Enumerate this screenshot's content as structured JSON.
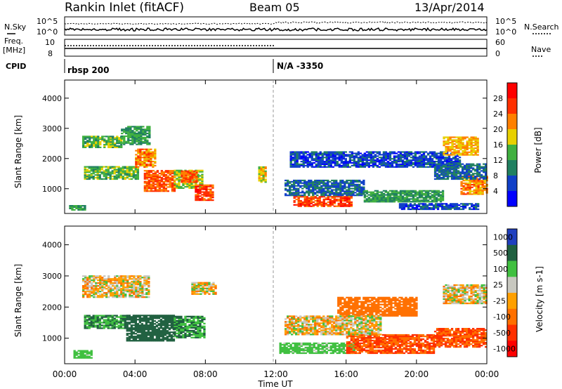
{
  "header": {
    "title": "Rankin Inlet (fitACF)",
    "beam": "Beam 05",
    "date": "13/Apr/2014"
  },
  "status_panel": {
    "left_top_label": "N.Sky",
    "left_mid_label_line1": "Freq.",
    "left_mid_label_line2": "[MHz]",
    "cpid_label": "CPID",
    "right_top_label": "N.Search",
    "right_mid_label": "Nave",
    "noise_ticks_left": [
      "10^5",
      "10^0"
    ],
    "noise_ticks_right": [
      "10^5",
      "10^0"
    ],
    "freq_ticks": [
      "10",
      "8"
    ],
    "nave_ticks": [
      "60",
      "0"
    ],
    "cpid_segments": [
      {
        "start_hour": 0.0,
        "label": "rbsp 200"
      },
      {
        "start_hour": 11.95,
        "label": "N/A -3350"
      }
    ]
  },
  "x_axis": {
    "label": "Time UT",
    "ticks": [
      "00:00",
      "04:00",
      "08:00",
      "12:00",
      "16:00",
      "20:00",
      "00:00"
    ]
  },
  "chart_data": [
    {
      "type": "heatmap",
      "name": "power",
      "ylabel": "Slant Range [km]",
      "xlim_hours": [
        0,
        24
      ],
      "ylim": [
        180,
        4600
      ],
      "yticks": [
        "1000",
        "2000",
        "3000",
        "4000"
      ],
      "colorbar": {
        "title": "Power [dB]",
        "labels": [
          "4",
          "8",
          "12",
          "16",
          "20",
          "24",
          "28"
        ],
        "colors": [
          "#0000ff",
          "#1040c8",
          "#208060",
          "#40b040",
          "#e8d000",
          "#ff8000",
          "#ff3000",
          "#ff0000"
        ]
      },
      "bands": [
        {
          "t0": 0.25,
          "t1": 1.1,
          "r0": 280,
          "r1": 420,
          "v": 12
        },
        {
          "t0": 1.0,
          "t1": 3.2,
          "r0": 2350,
          "r1": 2750,
          "v": 14
        },
        {
          "t0": 3.2,
          "t1": 4.8,
          "r0": 2450,
          "r1": 3050,
          "v": 12
        },
        {
          "t0": 1.1,
          "t1": 4.2,
          "r0": 1300,
          "r1": 1750,
          "v": 14
        },
        {
          "t0": 4.0,
          "t1": 5.2,
          "r0": 1700,
          "r1": 2300,
          "v": 22
        },
        {
          "t0": 4.5,
          "t1": 6.2,
          "r0": 900,
          "r1": 1600,
          "v": 24
        },
        {
          "t0": 6.2,
          "t1": 7.8,
          "r0": 1000,
          "r1": 1600,
          "v": 16
        },
        {
          "t0": 6.6,
          "t1": 7.5,
          "r0": 1200,
          "r1": 1600,
          "v": 24
        },
        {
          "t0": 7.4,
          "t1": 8.4,
          "r0": 600,
          "r1": 1100,
          "v": 26
        },
        {
          "t0": 11.0,
          "t1": 11.4,
          "r0": 1200,
          "r1": 1700,
          "v": 18
        },
        {
          "t0": 13.0,
          "t1": 16.3,
          "r0": 400,
          "r1": 760,
          "v": 26
        },
        {
          "t0": 12.5,
          "t1": 17.0,
          "r0": 760,
          "r1": 1300,
          "v": 8
        },
        {
          "t0": 12.8,
          "t1": 22.5,
          "r0": 1700,
          "r1": 2200,
          "v": 6
        },
        {
          "t0": 17.0,
          "t1": 21.5,
          "r0": 550,
          "r1": 950,
          "v": 12
        },
        {
          "t0": 19.0,
          "t1": 23.5,
          "r0": 300,
          "r1": 500,
          "v": 6
        },
        {
          "t0": 21.5,
          "t1": 23.5,
          "r0": 2100,
          "r1": 2700,
          "v": 20
        },
        {
          "t0": 22.5,
          "t1": 24.0,
          "r0": 800,
          "r1": 1400,
          "v": 22
        },
        {
          "t0": 21.0,
          "t1": 24.0,
          "r0": 1300,
          "r1": 1800,
          "v": 8
        }
      ]
    },
    {
      "type": "heatmap",
      "name": "velocity",
      "ylabel": "Slant Range [km]",
      "xlim_hours": [
        0,
        24
      ],
      "ylim": [
        180,
        4600
      ],
      "yticks": [
        "1000",
        "2000",
        "3000",
        "4000"
      ],
      "colorbar": {
        "title": "Velocity [m s-1]",
        "labels": [
          "1000",
          "500",
          "100",
          "25",
          "-25",
          "-100",
          "-500",
          "-1000"
        ],
        "colors": [
          "#2040c0",
          "#206040",
          "#40c040",
          "#c8c8c0",
          "#ffa000",
          "#ff7000",
          "#ff3000",
          "#ff0000"
        ]
      },
      "bands": [
        {
          "t0": 1.0,
          "t1": 4.8,
          "r0": 2300,
          "r1": 3000,
          "v": 0
        },
        {
          "t0": 0.5,
          "t1": 1.5,
          "r0": 350,
          "r1": 600,
          "v": 150
        },
        {
          "t0": 1.1,
          "t1": 3.5,
          "r0": 1300,
          "r1": 1750,
          "v": 300
        },
        {
          "t0": 3.5,
          "t1": 6.2,
          "r0": 900,
          "r1": 1750,
          "v": 600
        },
        {
          "t0": 6.2,
          "t1": 8.0,
          "r0": 1000,
          "r1": 1700,
          "v": 300
        },
        {
          "t0": 7.2,
          "t1": 8.6,
          "r0": 2400,
          "r1": 2800,
          "v": 0
        },
        {
          "t0": 12.2,
          "t1": 16.5,
          "r0": 500,
          "r1": 850,
          "v": 150
        },
        {
          "t0": 16.0,
          "t1": 21.0,
          "r0": 500,
          "r1": 1100,
          "v": -300
        },
        {
          "t0": 15.5,
          "t1": 20.0,
          "r0": 1700,
          "r1": 2300,
          "v": -200
        },
        {
          "t0": 12.5,
          "t1": 18.0,
          "r0": 1100,
          "r1": 1700,
          "v": 0
        },
        {
          "t0": 21.5,
          "t1": 24.0,
          "r0": 2100,
          "r1": 2700,
          "v": 0
        },
        {
          "t0": 21.0,
          "t1": 24.0,
          "r0": 700,
          "r1": 1300,
          "v": -300
        }
      ]
    }
  ]
}
